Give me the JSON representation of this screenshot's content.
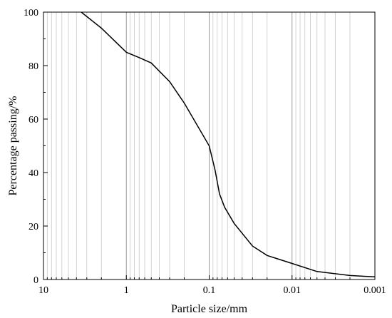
{
  "chart_data": {
    "type": "line",
    "title": "",
    "xlabel": "Particle size/mm",
    "ylabel": "Percentage passing/%",
    "x_scale": "log",
    "x_reversed": true,
    "xlim": [
      10,
      0.001
    ],
    "ylim": [
      0,
      100
    ],
    "grid": true,
    "x_ticks": [
      {
        "value": 10,
        "label": "10"
      },
      {
        "value": 1,
        "label": "1"
      },
      {
        "value": 0.1,
        "label": "0.1"
      },
      {
        "value": 0.01,
        "label": "0.01"
      },
      {
        "value": 0.001,
        "label": "0.001"
      }
    ],
    "y_ticks": [
      {
        "value": 0,
        "label": "0"
      },
      {
        "value": 20,
        "label": "20"
      },
      {
        "value": 40,
        "label": "40"
      },
      {
        "value": 60,
        "label": "60"
      },
      {
        "value": 80,
        "label": "80"
      },
      {
        "value": 100,
        "label": "100"
      }
    ],
    "series": [
      {
        "color": "#000000",
        "x": [
          3.5,
          2,
          1,
          0.7,
          0.5,
          0.3,
          0.2,
          0.1,
          0.085,
          0.075,
          0.065,
          0.05,
          0.03,
          0.02,
          0.01,
          0.005,
          0.002,
          0.001
        ],
        "y": [
          100,
          94,
          85,
          83,
          81,
          74,
          66,
          50,
          41,
          32,
          27,
          21,
          12.5,
          9,
          6,
          3,
          1.5,
          1
        ]
      }
    ]
  }
}
